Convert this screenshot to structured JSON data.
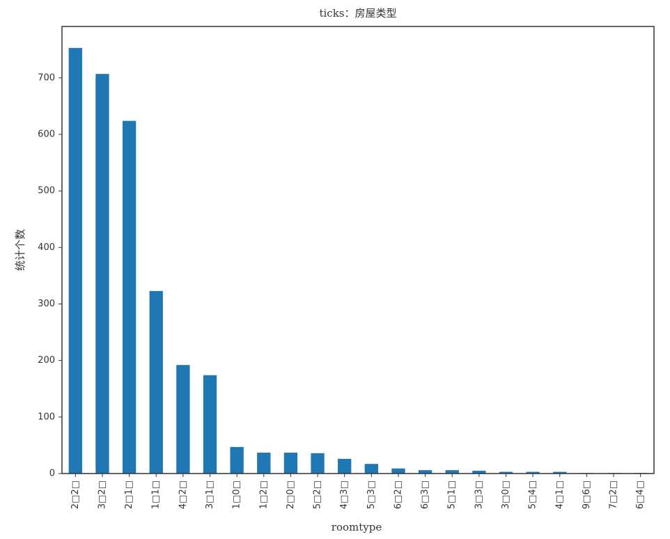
{
  "chart_data": {
    "type": "bar",
    "title": "ticks：房屋类型",
    "x_label": "roomtype",
    "y_label": "统计个数",
    "categories": [
      "2□2□",
      "3□2□",
      "2□1□",
      "1□1□",
      "4□2□",
      "3□1□",
      "1□0□",
      "1□2□",
      "2□0□",
      "5□2□",
      "4□3□",
      "5□3□",
      "6□2□",
      "6□3□",
      "5□1□",
      "3□3□",
      "3□0□",
      "5□4□",
      "4□1□",
      "9□6□",
      "7□2□",
      "6□4□"
    ],
    "values": [
      753,
      707,
      624,
      323,
      192,
      174,
      47,
      37,
      37,
      36,
      26,
      17,
      9,
      6,
      6,
      5,
      3,
      3,
      3,
      1,
      1,
      1
    ],
    "color": "#1f77b4",
    "ylim": [
      0,
      791
    ],
    "yticks": [
      0,
      100,
      200,
      300,
      400,
      500,
      600,
      700
    ],
    "grid": false
  }
}
